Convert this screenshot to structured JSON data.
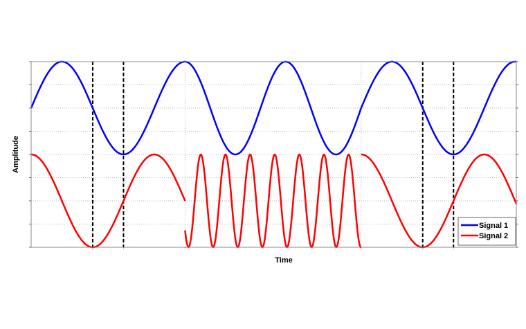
{
  "chart_data": {
    "type": "line",
    "title": "",
    "xlabel": "Time",
    "ylabel": "Amplitude",
    "xlim": [
      0,
      3.94
    ],
    "ylim": [
      -2,
      2
    ],
    "grid": true,
    "y_ticks": [
      -2,
      -1.5,
      -1,
      -0.5,
      0,
      0.5,
      1,
      1.5,
      2
    ],
    "x_ticks": [
      0.5,
      0.75,
      1.25,
      2.68,
      3.18,
      3.43
    ],
    "tick_labels_shown": false,
    "legend": {
      "position": "bottom-right",
      "entries": [
        "Signal 1",
        "Signal 2"
      ]
    },
    "markers": {
      "style": "dashed vertical",
      "color": "#000000",
      "x": [
        0.5,
        0.75,
        3.18,
        3.43
      ]
    },
    "series": [
      {
        "name": "Signal 1",
        "color": "#0000ff",
        "segments": [
          {
            "t_start": 0,
            "t_end": 1.25,
            "wave": "sin",
            "offset": 1,
            "amplitude": 1,
            "period": 1,
            "t_ref": 0
          },
          {
            "t_start": 1.25,
            "t_end": 2.68,
            "wave": "cos",
            "offset": 1,
            "amplitude": 1,
            "period": 0.817,
            "t_ref": 1.25
          },
          {
            "t_start": 2.68,
            "t_end": 3.94,
            "wave": "sin",
            "offset": 1,
            "amplitude": 1,
            "period": 1,
            "t_ref": 2.68
          }
        ]
      },
      {
        "name": "Signal 2",
        "color": "#ff0000",
        "segments": [
          {
            "t_start": 0,
            "t_end": 1.25,
            "wave": "cos",
            "offset": -1,
            "amplitude": 1,
            "period": 1,
            "t_ref": 0
          },
          {
            "t_start": 1.25,
            "t_end": 2.68,
            "wave": "cos",
            "offset": -1,
            "amplitude": -1,
            "period": 0.2,
            "t_ref": 1.278
          },
          {
            "t_start": 2.68,
            "t_end": 3.94,
            "wave": "cos",
            "offset": -1,
            "amplitude": 1,
            "period": 1,
            "t_ref": 2.68
          }
        ]
      }
    ]
  }
}
